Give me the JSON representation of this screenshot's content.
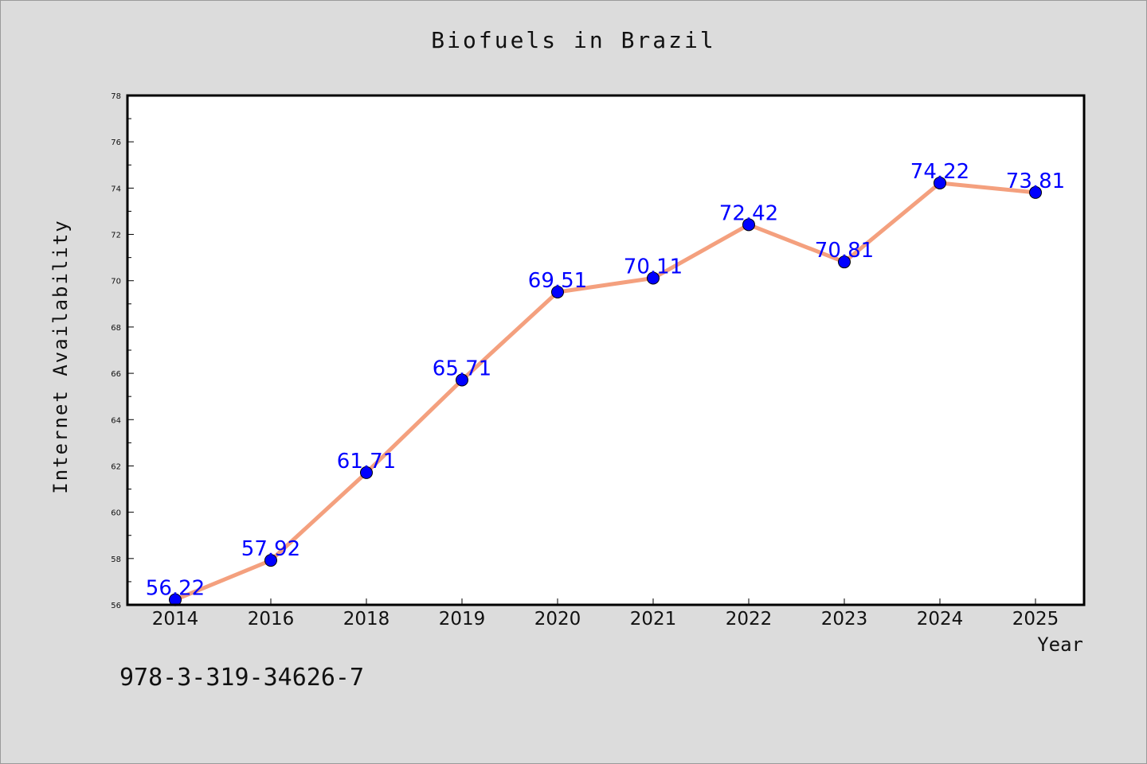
{
  "chart_data": {
    "type": "line",
    "title": "Biofuels in Brazil",
    "xlabel": "Year",
    "ylabel": "Internet Availability",
    "categories": [
      "2014",
      "2016",
      "2018",
      "2019",
      "2020",
      "2021",
      "2022",
      "2023",
      "2024",
      "2025"
    ],
    "series": [
      {
        "values": [
          56.22,
          57.92,
          61.71,
          65.71,
          69.51,
          70.11,
          72.42,
          70.81,
          74.22,
          73.81
        ],
        "labels": [
          "56.22",
          "57.92",
          "61.71",
          "65.71",
          "69.51",
          "70.11",
          "72.42",
          "70.81",
          "74.22",
          "73.81"
        ],
        "line_color": "#f4a07e",
        "marker_color": "#0000ff"
      }
    ],
    "ylim": [
      56,
      78
    ],
    "yticks": [
      "56",
      "58",
      "60",
      "62",
      "64",
      "66",
      "68",
      "70",
      "72",
      "74",
      "76",
      "78"
    ],
    "grid": false,
    "legend": "none"
  },
  "footnote": "978-3-319-34626-7"
}
